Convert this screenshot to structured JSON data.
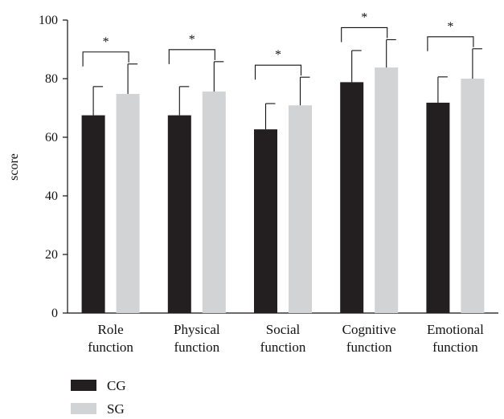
{
  "chart_data": {
    "type": "bar",
    "ylabel": "score",
    "ylim": [
      0,
      100
    ],
    "yticks": [
      0,
      20,
      40,
      60,
      80,
      100
    ],
    "categories": [
      [
        "Role",
        "function"
      ],
      [
        "Physical",
        "function"
      ],
      [
        "Social",
        "function"
      ],
      [
        "Cognitive",
        "function"
      ],
      [
        "Emotional",
        "function"
      ]
    ],
    "series": [
      {
        "name": "CG",
        "color": "#231f20",
        "values": [
          67.5,
          67.5,
          62.7,
          78.8,
          71.8
        ],
        "errors": [
          9.8,
          9.8,
          8.8,
          10.8,
          8.8
        ]
      },
      {
        "name": "SG",
        "color": "#d1d3d4",
        "values": [
          74.8,
          75.6,
          70.9,
          83.8,
          80.0
        ],
        "errors": [
          10.2,
          10.2,
          9.6,
          9.5,
          10.2
        ]
      }
    ],
    "significance": {
      "label": "*",
      "pairs": [
        0,
        1,
        2,
        3,
        4
      ]
    },
    "legend": {
      "position": "bottom-left"
    },
    "grid": false
  }
}
